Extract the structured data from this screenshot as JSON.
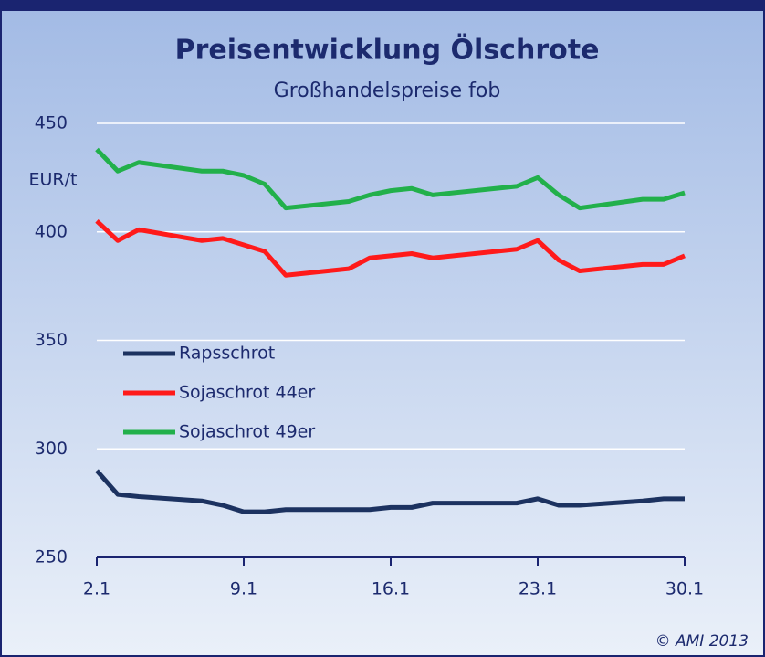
{
  "chart_data": {
    "type": "line",
    "title": "Preisentwicklung Ölschrote",
    "subtitle": "Großhandelspreise fob",
    "y_label": "EUR/t",
    "credit": "© AMI 2013",
    "x": [
      2,
      3,
      4,
      7,
      8,
      9,
      10,
      11,
      14,
      15,
      16,
      17,
      18,
      21,
      22,
      23,
      24,
      25,
      28,
      29,
      30
    ],
    "xlim": [
      2,
      30
    ],
    "xticks": [
      {
        "value": 2,
        "label": "2.1"
      },
      {
        "value": 9,
        "label": "9.1"
      },
      {
        "value": 16,
        "label": "16.1"
      },
      {
        "value": 23,
        "label": "23.1"
      },
      {
        "value": 30,
        "label": "30.1"
      }
    ],
    "ylim": [
      250,
      450
    ],
    "yticks": [
      250,
      300,
      350,
      400,
      450
    ],
    "grid": true,
    "series": [
      {
        "name": "Rapsschrot",
        "color": "#1c3260",
        "values": [
          290,
          279,
          278,
          276,
          274,
          271,
          271,
          272,
          272,
          272,
          273,
          273,
          275,
          275,
          275,
          277,
          274,
          274,
          276,
          277,
          277
        ]
      },
      {
        "name": "Sojaschrot 44er",
        "color": "#ff1a1a",
        "values": [
          405,
          396,
          401,
          396,
          397,
          394,
          391,
          380,
          383,
          388,
          389,
          390,
          388,
          391,
          392,
          396,
          387,
          382,
          385,
          385,
          389
        ]
      },
      {
        "name": "Sojaschrot 49er",
        "color": "#22b04b",
        "values": [
          438,
          428,
          432,
          428,
          428,
          426,
          422,
          411,
          414,
          417,
          419,
          420,
          417,
          420,
          421,
          425,
          417,
          411,
          415,
          415,
          418
        ]
      }
    ]
  }
}
